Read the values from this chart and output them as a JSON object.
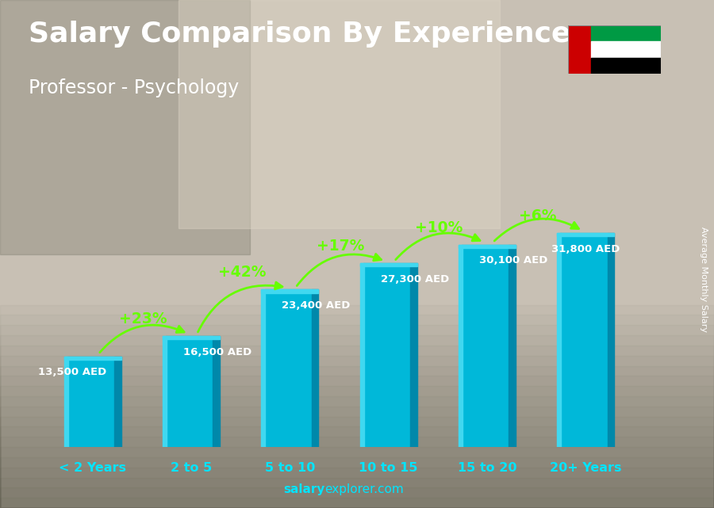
{
  "title": "Salary Comparison By Experience",
  "subtitle": "Professor - Psychology",
  "categories": [
    "< 2 Years",
    "2 to 5",
    "5 to 10",
    "10 to 15",
    "15 to 20",
    "20+ Years"
  ],
  "values": [
    13500,
    16500,
    23400,
    27300,
    30100,
    31800
  ],
  "value_labels": [
    "13,500 AED",
    "16,500 AED",
    "23,400 AED",
    "27,300 AED",
    "30,100 AED",
    "31,800 AED"
  ],
  "pct_labels": [
    "+23%",
    "+42%",
    "+17%",
    "+10%",
    "+6%"
  ],
  "bar_color_main": "#00b8d9",
  "bar_color_light": "#40d8f0",
  "bar_color_dark": "#0088aa",
  "bar_color_top": "#20c8e8",
  "bg_color": "#b0a898",
  "text_color": "white",
  "title_fontsize": 26,
  "subtitle_fontsize": 17,
  "ylabel": "Average Monthly Salary",
  "pct_color": "#66ff00",
  "val_color": "white",
  "xlabel_color": "#00e5ff",
  "footer_bold": "salary",
  "footer_normal": "explorer.com",
  "footer_color": "#00e5ff"
}
